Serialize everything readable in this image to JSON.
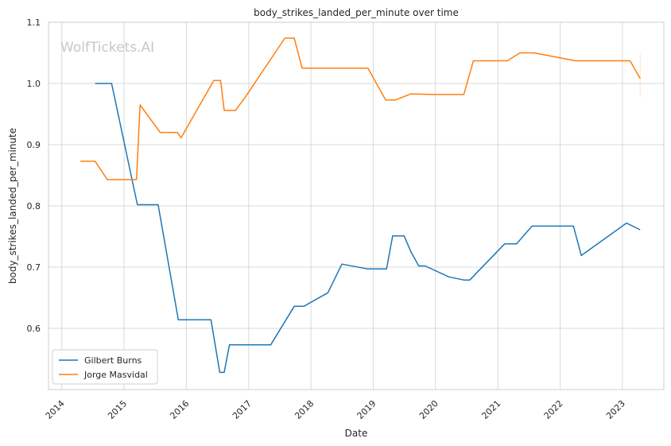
{
  "chart_data": {
    "type": "line",
    "title": "body_strikes_landed_per_minute over time",
    "xlabel": "Date",
    "ylabel": "body_strikes_landed_per_minute",
    "watermark": "WolfTickets.AI",
    "xlim": [
      "2013-10-15",
      "2023-09-01"
    ],
    "ylim": [
      0.5,
      1.1
    ],
    "x_ticks": [
      "2014",
      "2015",
      "2016",
      "2017",
      "2018",
      "2019",
      "2020",
      "2021",
      "2022",
      "2023"
    ],
    "y_ticks": [
      0.6,
      0.7,
      0.8,
      0.9,
      1.0,
      1.1
    ],
    "y_tick_labels": [
      "0.6",
      "0.7",
      "0.8",
      "0.9",
      "1.0",
      "1.1"
    ],
    "grid": true,
    "legend_position": "lower-left",
    "series": [
      {
        "name": "Gilbert Burns",
        "color": "#1f77b4",
        "points": [
          [
            "2014-07-15",
            1.0
          ],
          [
            "2014-10-20",
            1.0
          ],
          [
            "2015-03-20",
            0.802
          ],
          [
            "2015-07-20",
            0.802
          ],
          [
            "2015-11-15",
            0.614
          ],
          [
            "2016-05-25",
            0.614
          ],
          [
            "2016-07-15",
            0.528
          ],
          [
            "2016-08-10",
            0.528
          ],
          [
            "2016-09-10",
            0.573
          ],
          [
            "2017-05-10",
            0.573
          ],
          [
            "2017-09-25",
            0.636
          ],
          [
            "2017-11-20",
            0.636
          ],
          [
            "2018-04-10",
            0.658
          ],
          [
            "2018-07-01",
            0.705
          ],
          [
            "2018-12-01",
            0.697
          ],
          [
            "2019-03-20",
            0.697
          ],
          [
            "2019-04-25",
            0.751
          ],
          [
            "2019-07-01",
            0.751
          ],
          [
            "2019-08-10",
            0.725
          ],
          [
            "2019-09-25",
            0.702
          ],
          [
            "2019-11-01",
            0.702
          ],
          [
            "2020-03-20",
            0.684
          ],
          [
            "2020-06-15",
            0.679
          ],
          [
            "2020-07-20",
            0.679
          ],
          [
            "2021-02-10",
            0.738
          ],
          [
            "2021-04-20",
            0.738
          ],
          [
            "2021-07-20",
            0.767
          ],
          [
            "2022-03-20",
            0.767
          ],
          [
            "2022-05-05",
            0.719
          ],
          [
            "2023-01-25",
            0.772
          ],
          [
            "2023-04-15",
            0.761
          ]
        ]
      },
      {
        "name": "Jorge Masvidal",
        "color": "#ff7f0e",
        "points": [
          [
            "2014-04-20",
            0.873
          ],
          [
            "2014-07-15",
            0.873
          ],
          [
            "2014-09-25",
            0.843
          ],
          [
            "2015-03-15",
            0.843
          ],
          [
            "2015-04-05",
            0.965
          ],
          [
            "2015-08-01",
            0.92
          ],
          [
            "2015-11-10",
            0.92
          ],
          [
            "2015-12-01",
            0.911
          ],
          [
            "2016-06-10",
            1.005
          ],
          [
            "2016-07-20",
            1.005
          ],
          [
            "2016-08-10",
            0.956
          ],
          [
            "2016-10-15",
            0.956
          ],
          [
            "2016-12-15",
            0.979
          ],
          [
            "2017-08-01",
            1.074
          ],
          [
            "2017-09-25",
            1.074
          ],
          [
            "2017-11-10",
            1.025
          ],
          [
            "2018-12-01",
            1.025
          ],
          [
            "2019-03-15",
            0.973
          ],
          [
            "2019-05-10",
            0.973
          ],
          [
            "2019-08-10",
            0.983
          ],
          [
            "2020-01-01",
            0.982
          ],
          [
            "2020-06-15",
            0.982
          ],
          [
            "2020-08-10",
            1.037
          ],
          [
            "2021-02-25",
            1.037
          ],
          [
            "2021-05-10",
            1.05
          ],
          [
            "2021-08-01",
            1.05
          ],
          [
            "2022-04-01",
            1.037
          ],
          [
            "2023-02-15",
            1.037
          ],
          [
            "2023-04-15",
            1.008
          ]
        ]
      }
    ]
  }
}
